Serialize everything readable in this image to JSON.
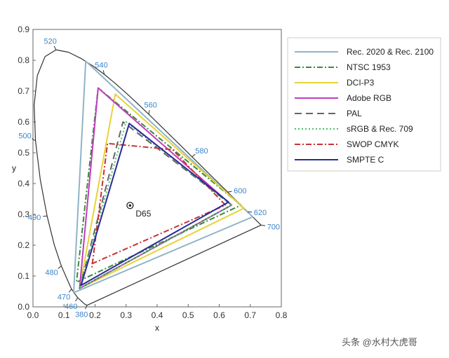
{
  "chart_data": {
    "type": "line",
    "xlabel": "x",
    "ylabel": "y",
    "xlim": [
      0,
      0.8
    ],
    "ylim": [
      0,
      0.9
    ],
    "x_ticks": [
      "0.0",
      "0.1",
      "0.2",
      "0.3",
      "0.4",
      "0.5",
      "0.6",
      "0.7",
      "0.8"
    ],
    "y_ticks": [
      "0.0",
      "0.1",
      "0.2",
      "0.3",
      "0.4",
      "0.5",
      "0.6",
      "0.7",
      "0.8",
      "0.9"
    ],
    "grid": false,
    "legend_position": "right",
    "spectral_locus": [
      [
        0.1741,
        0.005
      ],
      [
        0.1666,
        0.0089
      ],
      [
        0.144,
        0.0297
      ],
      [
        0.1241,
        0.0578
      ],
      [
        0.0913,
        0.1327
      ],
      [
        0.0687,
        0.2007
      ],
      [
        0.0454,
        0.295
      ],
      [
        0.0235,
        0.4127
      ],
      [
        0.0082,
        0.5384
      ],
      [
        0.0039,
        0.6548
      ],
      [
        0.0139,
        0.7502
      ],
      [
        0.0389,
        0.812
      ],
      [
        0.0743,
        0.8338
      ],
      [
        0.1142,
        0.8262
      ],
      [
        0.1547,
        0.8059
      ],
      [
        0.1929,
        0.7816
      ],
      [
        0.2296,
        0.7543
      ],
      [
        0.2658,
        0.7243
      ],
      [
        0.3016,
        0.6923
      ],
      [
        0.3373,
        0.6589
      ],
      [
        0.3731,
        0.6245
      ],
      [
        0.4087,
        0.5896
      ],
      [
        0.4441,
        0.5547
      ],
      [
        0.4788,
        0.5202
      ],
      [
        0.5125,
        0.4866
      ],
      [
        0.5448,
        0.4544
      ],
      [
        0.5752,
        0.4242
      ],
      [
        0.6029,
        0.3965
      ],
      [
        0.627,
        0.3725
      ],
      [
        0.6482,
        0.3514
      ],
      [
        0.6658,
        0.334
      ],
      [
        0.6915,
        0.3083
      ],
      [
        0.7079,
        0.292
      ],
      [
        0.7347,
        0.2653
      ]
    ],
    "wavelength_labels": [
      {
        "label": "380",
        "x": 0.1741,
        "y": 0.005
      },
      {
        "label": "460",
        "x": 0.144,
        "y": 0.0297
      },
      {
        "label": "470",
        "x": 0.1241,
        "y": 0.0578
      },
      {
        "label": "480",
        "x": 0.0913,
        "y": 0.1327
      },
      {
        "label": "490",
        "x": 0.0454,
        "y": 0.295
      },
      {
        "label": "500",
        "x": 0.0082,
        "y": 0.5384
      },
      {
        "label": "520",
        "x": 0.0743,
        "y": 0.8338
      },
      {
        "label": "540",
        "x": 0.2296,
        "y": 0.7543
      },
      {
        "label": "560",
        "x": 0.3731,
        "y": 0.6245
      },
      {
        "label": "580",
        "x": 0.5125,
        "y": 0.4866
      },
      {
        "label": "600",
        "x": 0.627,
        "y": 0.3725
      },
      {
        "label": "620",
        "x": 0.6915,
        "y": 0.3083
      },
      {
        "label": "700",
        "x": 0.7347,
        "y": 0.2653
      }
    ],
    "white_point": {
      "label": "D65",
      "x": 0.3127,
      "y": 0.329
    },
    "series": [
      {
        "name": "Rec. 2020 & Rec. 2100",
        "color": "#8fb4c8",
        "dash": "solid",
        "points": [
          [
            0.708,
            0.292
          ],
          [
            0.17,
            0.797
          ],
          [
            0.131,
            0.046
          ]
        ]
      },
      {
        "name": "NTSC 1953",
        "color": "#3a8a3a",
        "dash": "dashdot",
        "points": [
          [
            0.67,
            0.33
          ],
          [
            0.21,
            0.71
          ],
          [
            0.14,
            0.08
          ]
        ]
      },
      {
        "name": "DCI-P3",
        "color": "#e8d23a",
        "dash": "solid",
        "points": [
          [
            0.68,
            0.32
          ],
          [
            0.265,
            0.69
          ],
          [
            0.15,
            0.06
          ]
        ]
      },
      {
        "name": "Adobe RGB",
        "color": "#c03cc0",
        "dash": "solid",
        "points": [
          [
            0.64,
            0.33
          ],
          [
            0.21,
            0.71
          ],
          [
            0.15,
            0.06
          ]
        ]
      },
      {
        "name": "PAL",
        "color": "#666666",
        "dash": "longdash",
        "points": [
          [
            0.64,
            0.33
          ],
          [
            0.29,
            0.6
          ],
          [
            0.15,
            0.06
          ]
        ]
      },
      {
        "name": "sRGB & Rec. 709",
        "color": "#4cc06a",
        "dash": "dotted",
        "points": [
          [
            0.64,
            0.33
          ],
          [
            0.3,
            0.6
          ],
          [
            0.15,
            0.06
          ]
        ]
      },
      {
        "name": "SWOP CMYK",
        "color": "#c83232",
        "dash": "dashdot",
        "points": [
          [
            0.62,
            0.33
          ],
          [
            0.45,
            0.51
          ],
          [
            0.24,
            0.53
          ],
          [
            0.19,
            0.13
          ],
          [
            0.19,
            0.14
          ],
          [
            0.62,
            0.33
          ]
        ]
      },
      {
        "name": "SMPTE C",
        "color": "#2a2a9a",
        "dash": "solid",
        "points": [
          [
            0.63,
            0.34
          ],
          [
            0.31,
            0.595
          ],
          [
            0.155,
            0.07
          ]
        ]
      }
    ]
  },
  "watermark": "头条 @水村大虎哥"
}
